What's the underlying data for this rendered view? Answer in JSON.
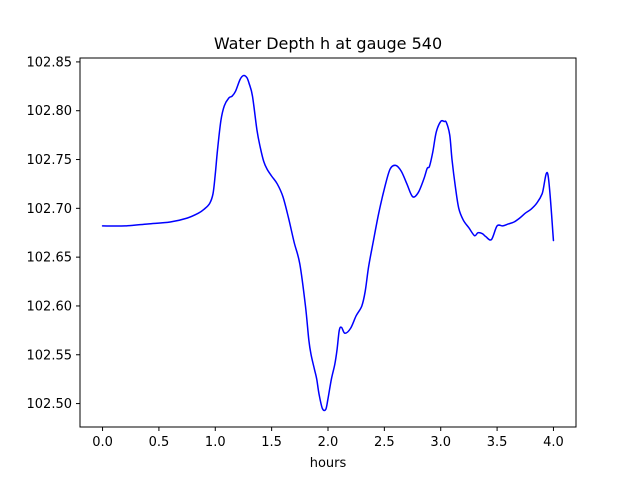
{
  "chart_data": {
    "type": "line",
    "title": "Water Depth h at gauge 540",
    "xlabel": "hours",
    "ylabel": "",
    "xlim": [
      -0.2,
      4.2
    ],
    "ylim": [
      102.476,
      102.854
    ],
    "grid": false,
    "xticks": [
      0.0,
      0.5,
      1.0,
      1.5,
      2.0,
      2.5,
      3.0,
      3.5,
      4.0
    ],
    "xtick_labels": [
      "0.0",
      "0.5",
      "1.0",
      "1.5",
      "2.0",
      "2.5",
      "3.0",
      "3.5",
      "4.0"
    ],
    "yticks": [
      102.5,
      102.55,
      102.6,
      102.65,
      102.7,
      102.75,
      102.8,
      102.85
    ],
    "ytick_labels": [
      "102.50",
      "102.55",
      "102.60",
      "102.65",
      "102.70",
      "102.75",
      "102.80",
      "102.85"
    ],
    "series": [
      {
        "color": "#0000ff",
        "x": [
          0.0,
          0.2,
          0.4,
          0.6,
          0.75,
          0.85,
          0.9,
          0.95,
          0.98,
          1.0,
          1.02,
          1.05,
          1.08,
          1.12,
          1.15,
          1.18,
          1.22,
          1.25,
          1.28,
          1.3,
          1.33,
          1.37,
          1.4,
          1.43,
          1.46,
          1.5,
          1.55,
          1.6,
          1.65,
          1.7,
          1.75,
          1.8,
          1.83,
          1.85,
          1.88,
          1.9,
          1.92,
          1.95,
          1.98,
          2.0,
          2.03,
          2.06,
          2.08,
          2.1,
          2.12,
          2.15,
          2.2,
          2.25,
          2.3,
          2.33,
          2.36,
          2.4,
          2.45,
          2.5,
          2.55,
          2.6,
          2.65,
          2.7,
          2.75,
          2.8,
          2.85,
          2.88,
          2.9,
          2.93,
          2.96,
          3.0,
          3.03,
          3.05,
          3.08,
          3.1,
          3.13,
          3.16,
          3.2,
          3.25,
          3.3,
          3.33,
          3.37,
          3.4,
          3.45,
          3.5,
          3.55,
          3.6,
          3.65,
          3.7,
          3.75,
          3.8,
          3.85,
          3.9,
          3.95,
          4.0
        ],
        "y": [
          102.682,
          102.682,
          102.684,
          102.686,
          102.69,
          102.695,
          102.699,
          102.705,
          102.715,
          102.735,
          102.76,
          102.79,
          102.805,
          102.813,
          102.815,
          102.82,
          102.832,
          102.836,
          102.834,
          102.828,
          102.815,
          102.78,
          102.762,
          102.748,
          102.74,
          102.733,
          102.725,
          102.712,
          102.69,
          102.665,
          102.643,
          102.6,
          102.565,
          102.55,
          102.535,
          102.525,
          102.51,
          102.495,
          102.494,
          102.505,
          102.525,
          102.54,
          102.555,
          102.575,
          102.578,
          102.572,
          102.577,
          102.59,
          102.6,
          102.615,
          102.64,
          102.665,
          102.695,
          102.72,
          102.74,
          102.744,
          102.738,
          102.725,
          102.712,
          102.716,
          102.73,
          102.741,
          102.743,
          102.758,
          102.778,
          102.789,
          102.789,
          102.788,
          102.775,
          102.75,
          102.722,
          102.7,
          102.688,
          102.68,
          102.672,
          102.675,
          102.674,
          102.671,
          102.668,
          102.682,
          102.682,
          102.684,
          102.686,
          102.69,
          102.695,
          102.699,
          102.705,
          102.715,
          102.735,
          102.667
        ]
      }
    ]
  }
}
